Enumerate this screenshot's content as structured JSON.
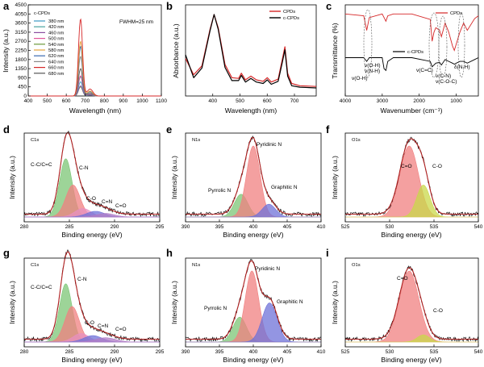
{
  "panels": {
    "a": {
      "letter": "a",
      "xlabel": "Wavelength (nm)",
      "ylabel": "Intensity (a.u.)",
      "xticks": [
        "400",
        "500",
        "600",
        "700",
        "800",
        "900",
        "1000",
        "1100"
      ],
      "yticks": [
        "0",
        "450",
        "900",
        "1350",
        "1800",
        "2250",
        "2700",
        "3150",
        "3600",
        "4050",
        "4500"
      ],
      "legend_title": "c-CPDs",
      "fwhm": "FWHM=25 nm"
    },
    "b": {
      "letter": "b",
      "xlabel": "Wavelength (nm)",
      "ylabel": "Absorbance (a.u.)",
      "xticks": [
        "400",
        "500",
        "600",
        "700"
      ],
      "legend": [
        "CPDs",
        "c-CPDs"
      ]
    },
    "c": {
      "letter": "c",
      "xlabel": "Wavenumber (cm⁻¹)",
      "ylabel": "Transmittance (%)",
      "xticks": [
        "4000",
        "3000",
        "2000",
        "1000"
      ],
      "series_labels": [
        "CPDs",
        "c-CPDs"
      ],
      "annotations": [
        "v(O-H)",
        "v(O-H)",
        "v(N-H)",
        "v(C=C)",
        "v(C-N)",
        "v(C-O-C)",
        "δ(N-H)"
      ]
    },
    "d": {
      "letter": "d",
      "element": "C1s",
      "xlabel": "Binding energy (eV)",
      "ylabel": "Intensity (a.u.)",
      "xticks": [
        "280",
        "285",
        "290",
        "295"
      ],
      "peaks": [
        "C-C/C=C",
        "C-N",
        "C-O",
        "C=N",
        "C=O"
      ]
    },
    "e": {
      "letter": "e",
      "element": "N1s",
      "xlabel": "Binding energy (eV)",
      "ylabel": "Intensity (a.u.)",
      "xticks": [
        "390",
        "395",
        "400",
        "405",
        "410"
      ],
      "peaks": [
        "Pyridinic N",
        "Pyrrolic N",
        "Graphitic N"
      ]
    },
    "f": {
      "letter": "f",
      "element": "O1s",
      "xlabel": "Binding energy (eV)",
      "ylabel": "Intensity (a.u.)",
      "xticks": [
        "525",
        "530",
        "535",
        "540"
      ],
      "peaks": [
        "C=O",
        "C-O"
      ]
    },
    "g": {
      "letter": "g",
      "element": "C1s",
      "xlabel": "Binding energy (eV)",
      "ylabel": "Intensity (a.u.)",
      "xticks": [
        "280",
        "285",
        "290",
        "295"
      ],
      "peaks": [
        "C-C/C=C",
        "C-N",
        "C-O",
        "C=N",
        "C=O"
      ]
    },
    "h": {
      "letter": "h",
      "element": "N1s",
      "xlabel": "Binding energy (eV)",
      "ylabel": "Intensity (a.u.)",
      "xticks": [
        "390",
        "395",
        "400",
        "405",
        "410"
      ],
      "peaks": [
        "Pyridinic N",
        "Pyrrolic N",
        "Graphitic N"
      ]
    },
    "i": {
      "letter": "i",
      "element": "O1s",
      "xlabel": "Binding energy (eV)",
      "ylabel": "Intensity (a.u.)",
      "xticks": [
        "525",
        "530",
        "535",
        "540"
      ],
      "peaks": [
        "C=O",
        "C-O"
      ]
    }
  },
  "colors": {
    "red": "#d62728",
    "black": "#000000",
    "peak_red": "#f08080",
    "peak_green": "#7cc576",
    "peak_blue": "#6f72d8",
    "peak_yellow": "#c9d84a",
    "peak_purple": "#b07cc6",
    "peak_pink": "#e890c0"
  },
  "chart_data": [
    {
      "panel": "a",
      "type": "line",
      "title": "",
      "xlabel": "Wavelength (nm)",
      "ylabel": "Intensity (a.u.)",
      "xlim": [
        400,
        1100
      ],
      "ylim": [
        0,
        4500
      ],
      "peak_center": 675,
      "fwhm": 25,
      "series": [
        {
          "name": "380 nm",
          "color": "#3d9ac4",
          "peak": 700
        },
        {
          "name": "420 nm",
          "color": "#4aa3a0",
          "peak": 950
        },
        {
          "name": "460 nm",
          "color": "#8a4ea0",
          "peak": 500
        },
        {
          "name": "500 nm",
          "color": "#e0559a",
          "peak": 1000
        },
        {
          "name": "540 nm",
          "color": "#6a9a3a",
          "peak": 450
        },
        {
          "name": "580 nm",
          "color": "#e6a23a",
          "peak": 2700
        },
        {
          "name": "620 nm",
          "color": "#3a6ab0",
          "peak": 2450
        },
        {
          "name": "640 nm",
          "color": "#8a8a8a",
          "peak": 1950
        },
        {
          "name": "660 nm",
          "color": "#d62728",
          "peak": 3800
        },
        {
          "name": "680 nm",
          "color": "#555555",
          "peak": 1350
        }
      ]
    },
    {
      "panel": "b",
      "type": "line",
      "xlabel": "Wavelength (nm)",
      "ylabel": "Absorbance (a.u.)",
      "xlim": [
        300,
        780
      ],
      "series": [
        {
          "name": "CPDs",
          "color": "#d62728",
          "x": [
            300,
            330,
            360,
            390,
            405,
            420,
            445,
            470,
            495,
            505,
            520,
            540,
            560,
            585,
            600,
            615,
            640,
            655,
            665,
            675,
            690,
            720,
            780
          ],
          "y": [
            0.4,
            0.18,
            0.3,
            0.8,
            1.0,
            0.82,
            0.32,
            0.14,
            0.13,
            0.2,
            0.11,
            0.16,
            0.11,
            0.09,
            0.14,
            0.08,
            0.12,
            0.38,
            0.56,
            0.2,
            0.06,
            0.03,
            0.02
          ]
        },
        {
          "name": "c-CPDs",
          "color": "#000000",
          "x": [
            300,
            330,
            360,
            390,
            405,
            420,
            445,
            470,
            495,
            505,
            520,
            540,
            560,
            585,
            600,
            615,
            640,
            655,
            665,
            675,
            690,
            720,
            780
          ],
          "y": [
            0.45,
            0.14,
            0.27,
            0.78,
            1.0,
            0.8,
            0.28,
            0.1,
            0.1,
            0.17,
            0.08,
            0.13,
            0.08,
            0.06,
            0.11,
            0.05,
            0.09,
            0.34,
            0.52,
            0.16,
            0.03,
            0.01,
            0.0
          ]
        }
      ]
    },
    {
      "panel": "c",
      "type": "line",
      "xlabel": "Wavenumber (cm⁻¹)",
      "ylabel": "Transmittance (%)",
      "xlim": [
        4000,
        400
      ],
      "series": [
        {
          "name": "CPDs",
          "color": "#d62728",
          "x": [
            4000,
            3500,
            3420,
            3350,
            3000,
            2950,
            2900,
            2850,
            2700,
            2200,
            1700,
            1650,
            1600,
            1550,
            1450,
            1400,
            1300,
            1200,
            1100,
            1050,
            900,
            800,
            700,
            500,
            400
          ],
          "y": [
            0.9,
            0.88,
            0.72,
            0.86,
            0.9,
            0.86,
            0.82,
            0.88,
            0.9,
            0.9,
            0.84,
            0.6,
            0.7,
            0.75,
            0.72,
            0.65,
            0.8,
            0.7,
            0.55,
            0.5,
            0.7,
            0.8,
            0.72,
            0.85,
            0.88
          ]
        },
        {
          "name": "c-CPDs",
          "color": "#000000",
          "x": [
            4000,
            3500,
            3420,
            3350,
            3000,
            2950,
            2900,
            2850,
            2700,
            2200,
            1700,
            1650,
            1600,
            1550,
            1450,
            1400,
            1300,
            1200,
            1100,
            1050,
            900,
            800,
            700,
            500,
            400
          ],
          "y": [
            0.42,
            0.42,
            0.38,
            0.42,
            0.42,
            0.3,
            0.28,
            0.38,
            0.42,
            0.42,
            0.38,
            0.32,
            0.34,
            0.36,
            0.37,
            0.34,
            0.4,
            0.38,
            0.36,
            0.35,
            0.38,
            0.38,
            0.36,
            0.4,
            0.42
          ]
        }
      ]
    },
    {
      "panel": "d",
      "type": "area",
      "xlabel": "Binding energy (eV)",
      "ylabel": "Intensity (a.u.)",
      "xlim": [
        280,
        295
      ],
      "envelope_peak": 1.0,
      "peaks": [
        {
          "name": "C-C/C=C",
          "center": 284.6,
          "height": 0.82,
          "width": 0.7,
          "color": "#7cc576"
        },
        {
          "name": "C-N",
          "center": 285.4,
          "height": 0.45,
          "width": 0.8,
          "color": "#f08080"
        },
        {
          "name": "C-O",
          "center": 286.5,
          "height": 0.12,
          "width": 0.9,
          "color": "#e890c0"
        },
        {
          "name": "C=N",
          "center": 287.9,
          "height": 0.08,
          "width": 1.0,
          "color": "#6f72d8"
        },
        {
          "name": "C=O",
          "center": 289.0,
          "height": 0.05,
          "width": 1.0,
          "color": "#b07cc6"
        }
      ]
    },
    {
      "panel": "e",
      "type": "area",
      "xlabel": "Binding energy (eV)",
      "ylabel": "Intensity (a.u.)",
      "xlim": [
        390,
        410
      ],
      "peaks": [
        {
          "name": "Pyrrolic N",
          "center": 398.2,
          "height": 0.32,
          "width": 1.0,
          "color": "#7cc576"
        },
        {
          "name": "Pyridinic N",
          "center": 400.0,
          "height": 1.0,
          "width": 1.0,
          "color": "#f08080"
        },
        {
          "name": "Graphitic N",
          "center": 402.3,
          "height": 0.18,
          "width": 1.0,
          "color": "#6f72d8"
        }
      ]
    },
    {
      "panel": "f",
      "type": "area",
      "xlabel": "Binding energy (eV)",
      "ylabel": "Intensity (a.u.)",
      "xlim": [
        525,
        540
      ],
      "peaks": [
        {
          "name": "C=O",
          "center": 532.2,
          "height": 1.0,
          "width": 1.05,
          "color": "#f08080"
        },
        {
          "name": "C-O",
          "center": 533.8,
          "height": 0.45,
          "width": 0.75,
          "color": "#c9d84a"
        }
      ]
    },
    {
      "panel": "g",
      "type": "area",
      "xlabel": "Binding energy (eV)",
      "ylabel": "Intensity (a.u.)",
      "xlim": [
        280,
        295
      ],
      "peaks": [
        {
          "name": "C-C/C=C",
          "center": 284.6,
          "height": 0.82,
          "width": 0.7,
          "color": "#7cc576"
        },
        {
          "name": "C-N",
          "center": 285.3,
          "height": 0.5,
          "width": 0.8,
          "color": "#f08080"
        },
        {
          "name": "C-O",
          "center": 286.3,
          "height": 0.12,
          "width": 0.9,
          "color": "#e890c0"
        },
        {
          "name": "C=N",
          "center": 287.6,
          "height": 0.09,
          "width": 1.0,
          "color": "#6f72d8"
        },
        {
          "name": "C=O",
          "center": 289.0,
          "height": 0.06,
          "width": 1.1,
          "color": "#b07cc6"
        }
      ]
    },
    {
      "panel": "h",
      "type": "area",
      "xlabel": "Binding energy (eV)",
      "ylabel": "Intensity (a.u.)",
      "xlim": [
        390,
        410
      ],
      "peaks": [
        {
          "name": "Pyrrolic N",
          "center": 398.0,
          "height": 0.35,
          "width": 1.0,
          "color": "#7cc576"
        },
        {
          "name": "Pyridinic N",
          "center": 399.8,
          "height": 1.0,
          "width": 1.0,
          "color": "#f08080"
        },
        {
          "name": "Graphitic N",
          "center": 402.4,
          "height": 0.55,
          "width": 1.1,
          "color": "#6f72d8"
        }
      ]
    },
    {
      "panel": "i",
      "type": "area",
      "xlabel": "Binding energy (eV)",
      "ylabel": "Intensity (a.u.)",
      "xlim": [
        525,
        540
      ],
      "peaks": [
        {
          "name": "C=O",
          "center": 532.2,
          "height": 1.0,
          "width": 1.1,
          "color": "#f08080"
        },
        {
          "name": "C-O",
          "center": 533.8,
          "height": 0.1,
          "width": 0.7,
          "color": "#c9d84a"
        }
      ]
    }
  ]
}
